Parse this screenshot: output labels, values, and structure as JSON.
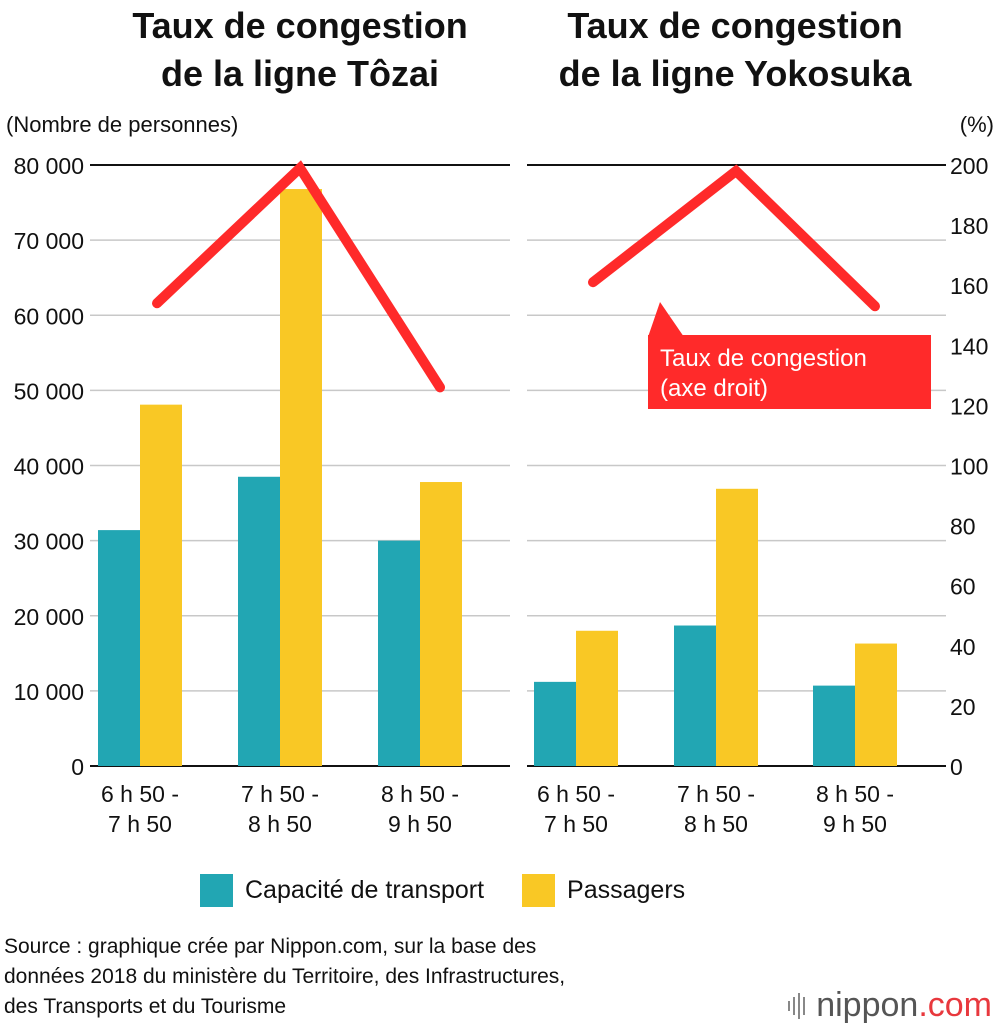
{
  "chart_data": [
    {
      "type": "bar",
      "title": "Taux de congestion\nde la ligne Tôzai",
      "categories": [
        "6 h 50 -\n7 h 50",
        "7 h 50 -\n8 h 50",
        "8 h 50 -\n9 h 50"
      ],
      "series": [
        {
          "name": "Capacité de transport",
          "values": [
            31400,
            38500,
            30000
          ],
          "color": "#22a6b3"
        },
        {
          "name": "Passagers",
          "values": [
            48100,
            76800,
            37800
          ],
          "color": "#f9c825"
        }
      ],
      "line_series": {
        "name": "Taux de congestion",
        "axis": "right",
        "values": [
          154,
          199,
          126
        ],
        "color": "#ff2a2a"
      },
      "ylabel": "(Nombre de personnes)",
      "ylim": [
        0,
        80000
      ],
      "yticks": [
        "0",
        "10 000",
        "20 000",
        "30 000",
        "40 000",
        "50 000",
        "60 000",
        "70 000",
        "80 000"
      ],
      "y2label": "(%)",
      "y2lim": [
        0,
        200
      ],
      "grid": true
    },
    {
      "type": "bar",
      "title": "Taux de congestion\nde la ligne Yokosuka",
      "categories": [
        "6 h 50 -\n7 h 50",
        "7 h 50 -\n8 h 50",
        "8 h 50 -\n9 h 50"
      ],
      "series": [
        {
          "name": "Capacité de transport",
          "values": [
            11200,
            18700,
            10700
          ],
          "color": "#22a6b3"
        },
        {
          "name": "Passagers",
          "values": [
            18000,
            36900,
            16300
          ],
          "color": "#f9c825"
        }
      ],
      "line_series": {
        "name": "Taux de congestion",
        "axis": "right",
        "values": [
          161,
          198,
          153
        ],
        "color": "#ff2a2a"
      },
      "ylim": [
        0,
        80000
      ],
      "y2label": "(%)",
      "y2lim": [
        0,
        200
      ],
      "y2ticks": [
        "0",
        "20",
        "40",
        "60",
        "80",
        "100",
        "120",
        "140",
        "160",
        "180",
        "200"
      ],
      "grid": true
    }
  ],
  "annotation": {
    "text": "Taux de congestion\n(axe droit)",
    "color": "#ff2a2a"
  },
  "legend": [
    {
      "label": "Capacité de transport",
      "color": "#22a6b3"
    },
    {
      "label": "Passagers",
      "color": "#f9c825"
    }
  ],
  "source": "Source : graphique crée par Nippon.com, sur la base des\ndonnées 2018 du ministère du Territoire, des Infrastructures,\ndes Transports et du Tourisme",
  "brand": {
    "name": "nippon",
    "suffix": ".com"
  }
}
